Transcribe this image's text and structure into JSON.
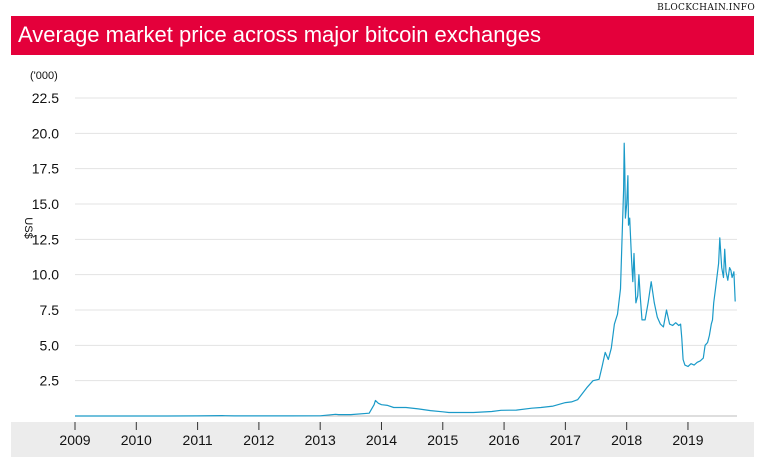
{
  "source": "BLOCKCHAIN.INFO",
  "title": "Average market price across major bitcoin exchanges",
  "chart_data": {
    "type": "line",
    "ylabel": "US$",
    "yunit": "('000)",
    "ylim": [
      0,
      22.5
    ],
    "yticks": [
      "2.5",
      "5.0",
      "7.5",
      "10.0",
      "12.5",
      "15.0",
      "17.5",
      "20.0",
      "22.5"
    ],
    "xlim": [
      2009,
      2019.8
    ],
    "xticks": [
      "2009",
      "2010",
      "2011",
      "2012",
      "2013",
      "2014",
      "2015",
      "2016",
      "2017",
      "2018",
      "2019"
    ],
    "grid": "horizontal",
    "line_color": "#1a9ac8",
    "series": [
      {
        "x": [
          2009.0,
          2010.0,
          2010.5,
          2011.0,
          2011.4,
          2011.45,
          2011.6,
          2012.0,
          2012.5,
          2013.0,
          2013.25,
          2013.3,
          2013.5,
          2013.8,
          2013.88,
          2013.9,
          2013.95,
          2014.0,
          2014.1,
          2014.2,
          2014.4,
          2014.6,
          2014.8,
          2015.0,
          2015.1,
          2015.5,
          2015.8,
          2015.95,
          2016.2,
          2016.45,
          2016.6,
          2016.8,
          2017.0,
          2017.1,
          2017.2,
          2017.35,
          2017.45,
          2017.55,
          2017.6,
          2017.65,
          2017.7,
          2017.75,
          2017.8,
          2017.85,
          2017.9,
          2017.92,
          2017.95,
          2017.96,
          2017.97,
          2017.98,
          2018.0,
          2018.02,
          2018.03,
          2018.05,
          2018.08,
          2018.1,
          2018.12,
          2018.15,
          2018.18,
          2018.2,
          2018.22,
          2018.25,
          2018.3,
          2018.35,
          2018.4,
          2018.45,
          2018.5,
          2018.55,
          2018.6,
          2018.65,
          2018.7,
          2018.75,
          2018.8,
          2018.85,
          2018.88,
          2018.9,
          2018.92,
          2018.95,
          2019.0,
          2019.05,
          2019.1,
          2019.15,
          2019.2,
          2019.25,
          2019.28,
          2019.32,
          2019.35,
          2019.38,
          2019.4,
          2019.42,
          2019.45,
          2019.5,
          2019.52,
          2019.55,
          2019.58,
          2019.6,
          2019.62,
          2019.65,
          2019.68,
          2019.7,
          2019.72,
          2019.75,
          2019.77
        ],
        "y": [
          0,
          0,
          0,
          0.01,
          0.03,
          0.02,
          0.01,
          0.005,
          0.01,
          0.015,
          0.12,
          0.1,
          0.1,
          0.2,
          0.8,
          1.1,
          0.9,
          0.8,
          0.75,
          0.6,
          0.6,
          0.5,
          0.38,
          0.3,
          0.25,
          0.25,
          0.32,
          0.4,
          0.42,
          0.55,
          0.6,
          0.7,
          0.95,
          1.0,
          1.15,
          2.0,
          2.5,
          2.6,
          3.5,
          4.5,
          4.0,
          4.8,
          6.5,
          7.2,
          9.0,
          12.0,
          16.0,
          19.3,
          17.5,
          14.0,
          15.0,
          17.0,
          13.5,
          14.0,
          11.0,
          9.5,
          11.5,
          8.0,
          8.5,
          10.0,
          8.5,
          6.8,
          6.8,
          8.0,
          9.5,
          8.0,
          7.0,
          6.5,
          6.3,
          7.5,
          6.5,
          6.4,
          6.6,
          6.4,
          6.5,
          5.5,
          4.0,
          3.6,
          3.5,
          3.7,
          3.6,
          3.8,
          3.9,
          4.1,
          5.0,
          5.2,
          5.7,
          6.5,
          6.8,
          8.0,
          9.0,
          10.8,
          12.6,
          10.5,
          9.8,
          11.8,
          10.2,
          9.6,
          10.5,
          10.3,
          9.8,
          10.2,
          8.1
        ]
      }
    ]
  }
}
